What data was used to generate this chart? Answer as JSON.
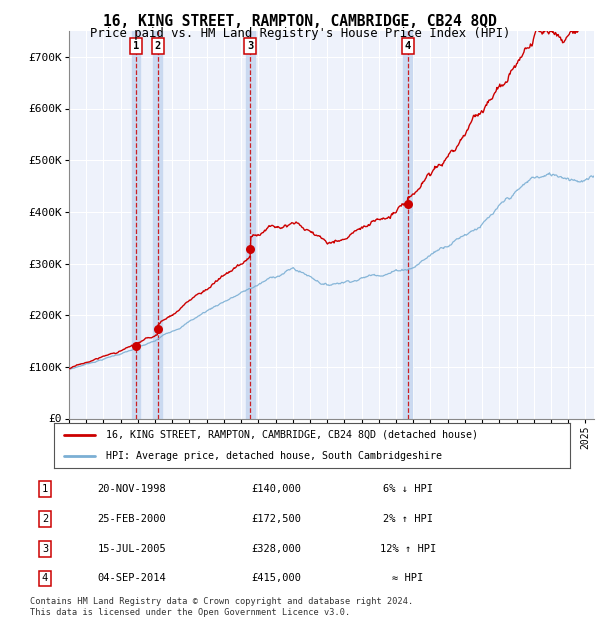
{
  "title": "16, KING STREET, RAMPTON, CAMBRIDGE, CB24 8QD",
  "subtitle": "Price paid vs. HM Land Registry's House Price Index (HPI)",
  "ylim": [
    0,
    750000
  ],
  "yticks": [
    0,
    100000,
    200000,
    300000,
    400000,
    500000,
    600000,
    700000
  ],
  "ytick_labels": [
    "£0",
    "£100K",
    "£200K",
    "£300K",
    "£400K",
    "£500K",
    "£600K",
    "£700K"
  ],
  "xlim_start": 1995.0,
  "xlim_end": 2025.5,
  "sale_dates": [
    1998.9,
    2000.15,
    2005.54,
    2014.67
  ],
  "sale_prices": [
    140000,
    172500,
    328000,
    415000
  ],
  "sale_labels": [
    "1",
    "2",
    "3",
    "4"
  ],
  "hpi_line_color": "#7bafd4",
  "price_line_color": "#cc0000",
  "sale_marker_color": "#cc0000",
  "vline_color": "#cc0000",
  "background_color": "#ffffff",
  "plot_bg_color": "#eef2fb",
  "grid_color": "#ffffff",
  "vspan_color": "#c8d8f0",
  "legend_label_price": "16, KING STREET, RAMPTON, CAMBRIDGE, CB24 8QD (detached house)",
  "legend_label_hpi": "HPI: Average price, detached house, South Cambridgeshire",
  "table_data": [
    [
      "1",
      "20-NOV-1998",
      "£140,000",
      "6% ↓ HPI"
    ],
    [
      "2",
      "25-FEB-2000",
      "£172,500",
      "2% ↑ HPI"
    ],
    [
      "3",
      "15-JUL-2005",
      "£328,000",
      "12% ↑ HPI"
    ],
    [
      "4",
      "04-SEP-2014",
      "£415,000",
      "≈ HPI"
    ]
  ],
  "footer": "Contains HM Land Registry data © Crown copyright and database right 2024.\nThis data is licensed under the Open Government Licence v3.0."
}
